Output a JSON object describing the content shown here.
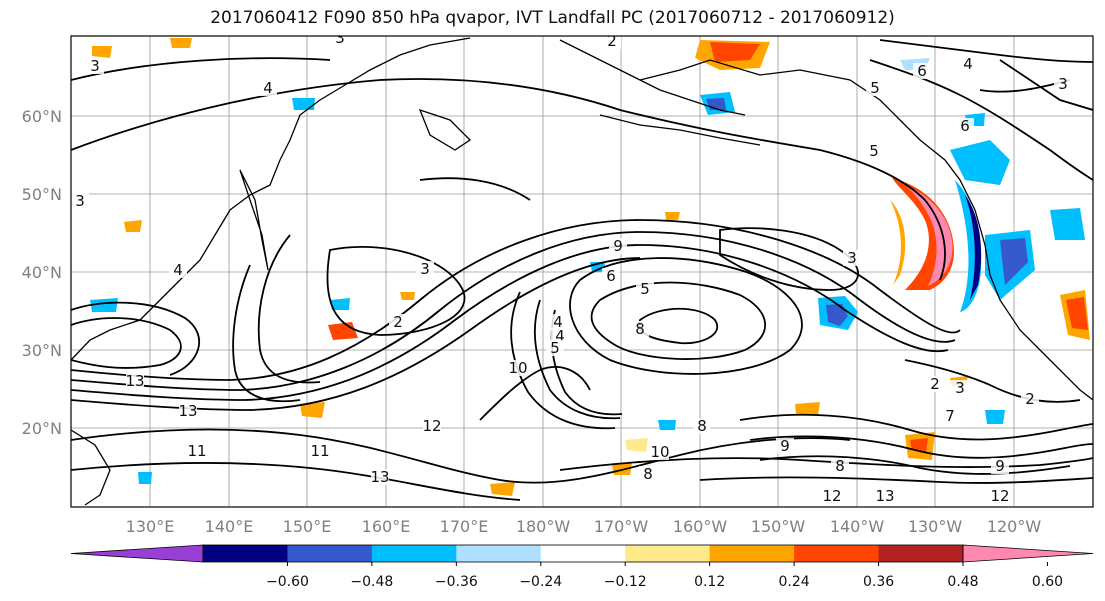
{
  "title": "2017060412 F090 850 hPa qvapor, IVT Landfall PC (2017060712 - 2017060912)",
  "lat_labels": [
    "60°N",
    "50°N",
    "40°N",
    "30°N",
    "20°N"
  ],
  "lon_labels": [
    "130°E",
    "140°E",
    "150°E",
    "160°E",
    "170°E",
    "180°W",
    "170°W",
    "160°W",
    "150°W",
    "140°W",
    "130°W",
    "120°W"
  ],
  "colorbar": {
    "colors": [
      "#9a3fd6",
      "#000080",
      "#3558cc",
      "#00bfff",
      "#b0e0ff",
      "#ffffff",
      "#ffe98a",
      "#ffa500",
      "#ff4500",
      "#b22222",
      "#ff88b0"
    ],
    "ticks": [
      "−0.60",
      "−0.48",
      "−0.36",
      "−0.24",
      "−0.12",
      "0.12",
      "0.24",
      "0.36",
      "0.48",
      "0.60"
    ]
  },
  "contour_labels": [
    {
      "text": "3"
    },
    {
      "text": "3"
    },
    {
      "text": "4"
    },
    {
      "text": "3"
    },
    {
      "text": "2"
    },
    {
      "text": "6"
    },
    {
      "text": "4"
    },
    {
      "text": "5"
    },
    {
      "text": "6"
    },
    {
      "text": "5"
    },
    {
      "text": "3"
    },
    {
      "text": "4"
    },
    {
      "text": "3"
    },
    {
      "text": "2"
    },
    {
      "text": "3"
    },
    {
      "text": "9"
    },
    {
      "text": "6"
    },
    {
      "text": "5"
    },
    {
      "text": "4"
    },
    {
      "text": "5"
    },
    {
      "text": "8"
    },
    {
      "text": "10"
    },
    {
      "text": "7"
    },
    {
      "text": "8"
    },
    {
      "text": "2"
    },
    {
      "text": "3"
    },
    {
      "text": "4"
    },
    {
      "text": "13"
    },
    {
      "text": "13"
    },
    {
      "text": "11"
    },
    {
      "text": "12"
    },
    {
      "text": "11"
    },
    {
      "text": "12"
    },
    {
      "text": "10"
    },
    {
      "text": "8"
    },
    {
      "text": "9"
    },
    {
      "text": "8"
    },
    {
      "text": "9"
    },
    {
      "text": "12"
    },
    {
      "text": "13"
    },
    {
      "text": "13"
    },
    {
      "text": "2"
    }
  ]
}
